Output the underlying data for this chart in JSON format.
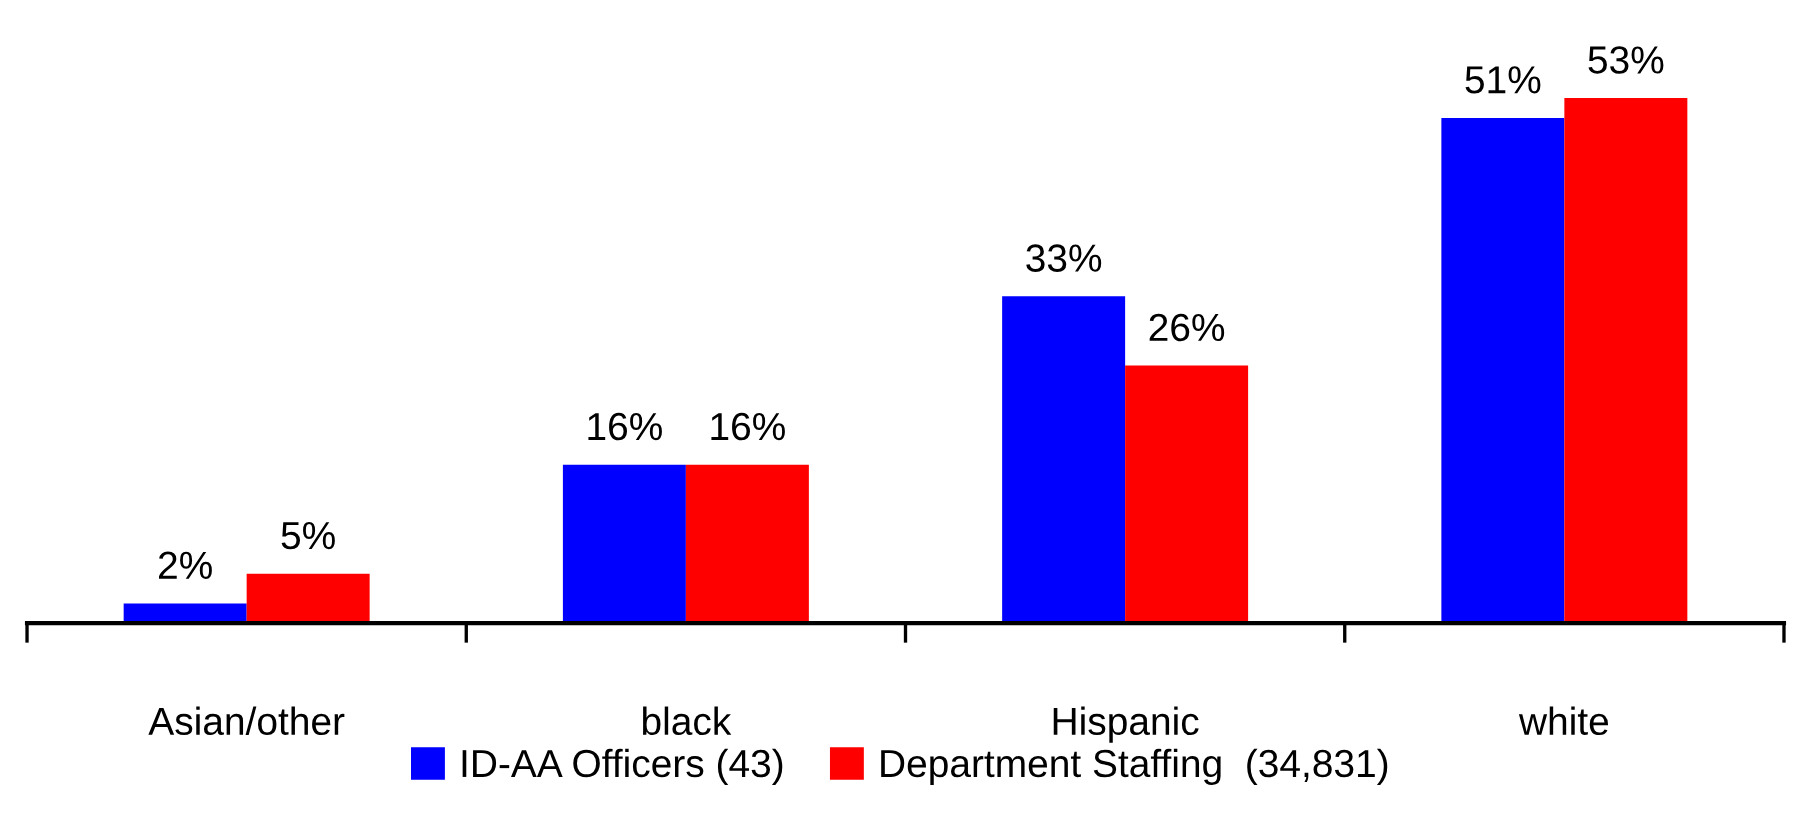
{
  "chart_data": {
    "type": "bar",
    "categories": [
      "Asian/other",
      "black",
      "Hispanic",
      "white"
    ],
    "series": [
      {
        "name": "ID-AA Officers (43)",
        "color": "#0000ff",
        "values": [
          2,
          16,
          33,
          51
        ],
        "value_labels": [
          "2%",
          "16%",
          "33%",
          "51%"
        ]
      },
      {
        "name": "Department Staffing  (34,831)",
        "color": "#ff0000",
        "values": [
          5,
          16,
          26,
          53
        ],
        "value_labels": [
          "5%",
          "16%",
          "26%",
          "53%"
        ]
      }
    ],
    "legend": "bottom",
    "grid": false,
    "tick_labels": "x"
  }
}
